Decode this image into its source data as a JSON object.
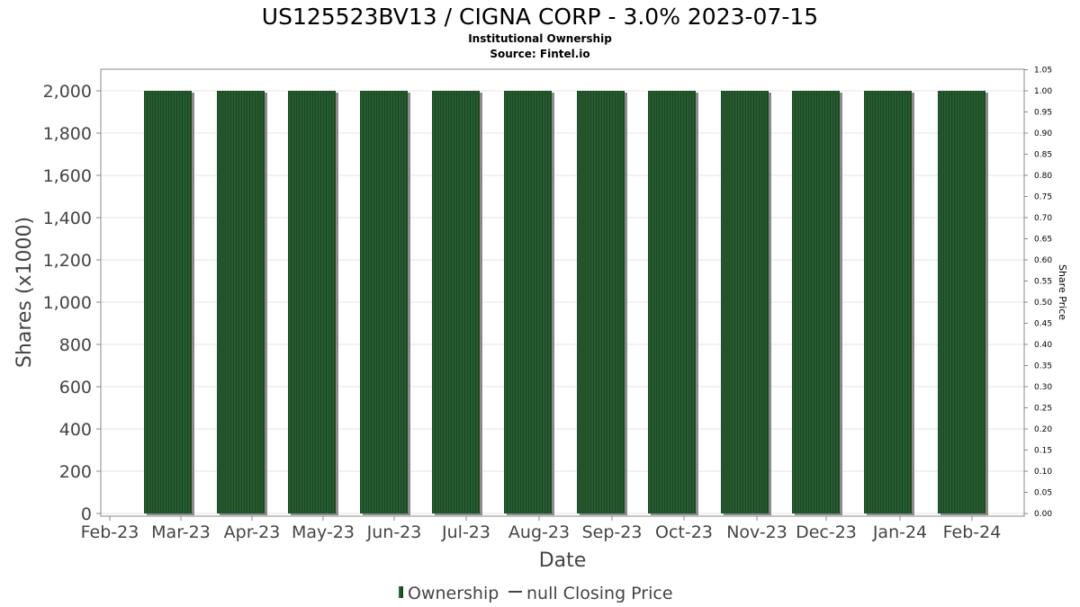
{
  "chart_data": {
    "type": "bar",
    "title": "US125523BV13 / CIGNA CORP - 3.0% 2023-07-15",
    "subtitle_lines": [
      "Institutional Ownership",
      "Source: Fintel.io"
    ],
    "xlabel": "Date",
    "ylabel": "Shares (x1000)",
    "y2label": "Share Price",
    "categories": [
      "Mar-23",
      "Apr-23",
      "May-23",
      "Jun-23",
      "Jul-23",
      "Aug-23",
      "Sep-23",
      "Oct-23",
      "Nov-23",
      "Dec-23",
      "Jan-24",
      "Feb-24"
    ],
    "x_tick_labels": [
      "Feb-23",
      "Mar-23",
      "Apr-23",
      "May-23",
      "Jun-23",
      "Jul-23",
      "Aug-23",
      "Sep-23",
      "Oct-23",
      "Nov-23",
      "Dec-23",
      "Jan-24",
      "Feb-24"
    ],
    "series": [
      {
        "name": "Ownership",
        "values": [
          2000,
          2000,
          2000,
          2000,
          2000,
          2000,
          2000,
          2000,
          2000,
          2000,
          2000,
          2000
        ]
      }
    ],
    "ylim": [
      0,
      2000
    ],
    "yticks": [
      "0",
      "200",
      "400",
      "600",
      "800",
      "1,000",
      "1,200",
      "1,400",
      "1,600",
      "1,800",
      "2,000"
    ],
    "y2lim": [
      0,
      1.05
    ],
    "y2ticks": [
      "0.00",
      "0.05",
      "0.10",
      "0.15",
      "0.20",
      "0.25",
      "0.30",
      "0.35",
      "0.40",
      "0.45",
      "0.50",
      "0.55",
      "0.60",
      "0.65",
      "0.70",
      "0.75",
      "0.80",
      "0.85",
      "0.90",
      "0.95",
      "1.00",
      "1.05"
    ],
    "grid": true,
    "legend_position": "bottom",
    "legend": [
      {
        "label": "Ownership",
        "kind": "bar"
      },
      {
        "label": "null Closing Price",
        "kind": "line"
      }
    ],
    "colors": {
      "bar_fill": "#1c4a24",
      "bar_stripe": "#2e6b38",
      "bar_shadow": "#8a8a8a",
      "grid": "#e6e6e6",
      "plot_border": "#888888"
    }
  }
}
